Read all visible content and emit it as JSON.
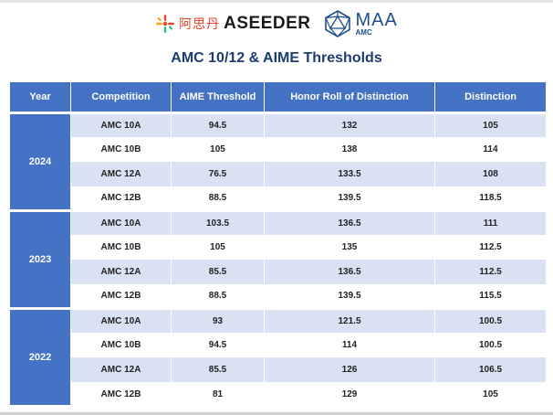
{
  "header": {
    "logo_left": {
      "chinese": "阿思丹",
      "brand_main": "ASEEDER",
      "brand_accent": ""
    },
    "logo_right": {
      "name": "MAA",
      "sub": "AMC"
    }
  },
  "title": "AMC 10/12 & AIME Thresholds",
  "table": {
    "columns": [
      "Year",
      "Competition",
      "AIME Threshold",
      "Honor Roll of Distinction",
      "Distinction"
    ],
    "groups": [
      {
        "year": "2024",
        "rows": [
          {
            "competition": "AMC 10A",
            "aime": "94.5",
            "honor": "132",
            "distinction": "105"
          },
          {
            "competition": "AMC 10B",
            "aime": "105",
            "honor": "138",
            "distinction": "114"
          },
          {
            "competition": "AMC 12A",
            "aime": "76.5",
            "honor": "133.5",
            "distinction": "108"
          },
          {
            "competition": "AMC 12B",
            "aime": "88.5",
            "honor": "139.5",
            "distinction": "118.5"
          }
        ]
      },
      {
        "year": "2023",
        "rows": [
          {
            "competition": "AMC 10A",
            "aime": "103.5",
            "honor": "136.5",
            "distinction": "111"
          },
          {
            "competition": "AMC 10B",
            "aime": "105",
            "honor": "135",
            "distinction": "112.5"
          },
          {
            "competition": "AMC 12A",
            "aime": "85.5",
            "honor": "136.5",
            "distinction": "112.5"
          },
          {
            "competition": "AMC 12B",
            "aime": "88.5",
            "honor": "139.5",
            "distinction": "115.5"
          }
        ]
      },
      {
        "year": "2022",
        "rows": [
          {
            "competition": "AMC 10A",
            "aime": "93",
            "honor": "121.5",
            "distinction": "100.5"
          },
          {
            "competition": "AMC 10B",
            "aime": "94.5",
            "honor": "114",
            "distinction": "100.5"
          },
          {
            "competition": "AMC 12A",
            "aime": "85.5",
            "honor": "126",
            "distinction": "106.5"
          },
          {
            "competition": "AMC 12B",
            "aime": "81",
            "honor": "129",
            "distinction": "105"
          }
        ]
      }
    ]
  },
  "colors": {
    "header_blue": "#4472c4",
    "row_stripe": "#d9e2f3",
    "title_navy": "#1e3c73",
    "brand_red": "#e8452c"
  }
}
